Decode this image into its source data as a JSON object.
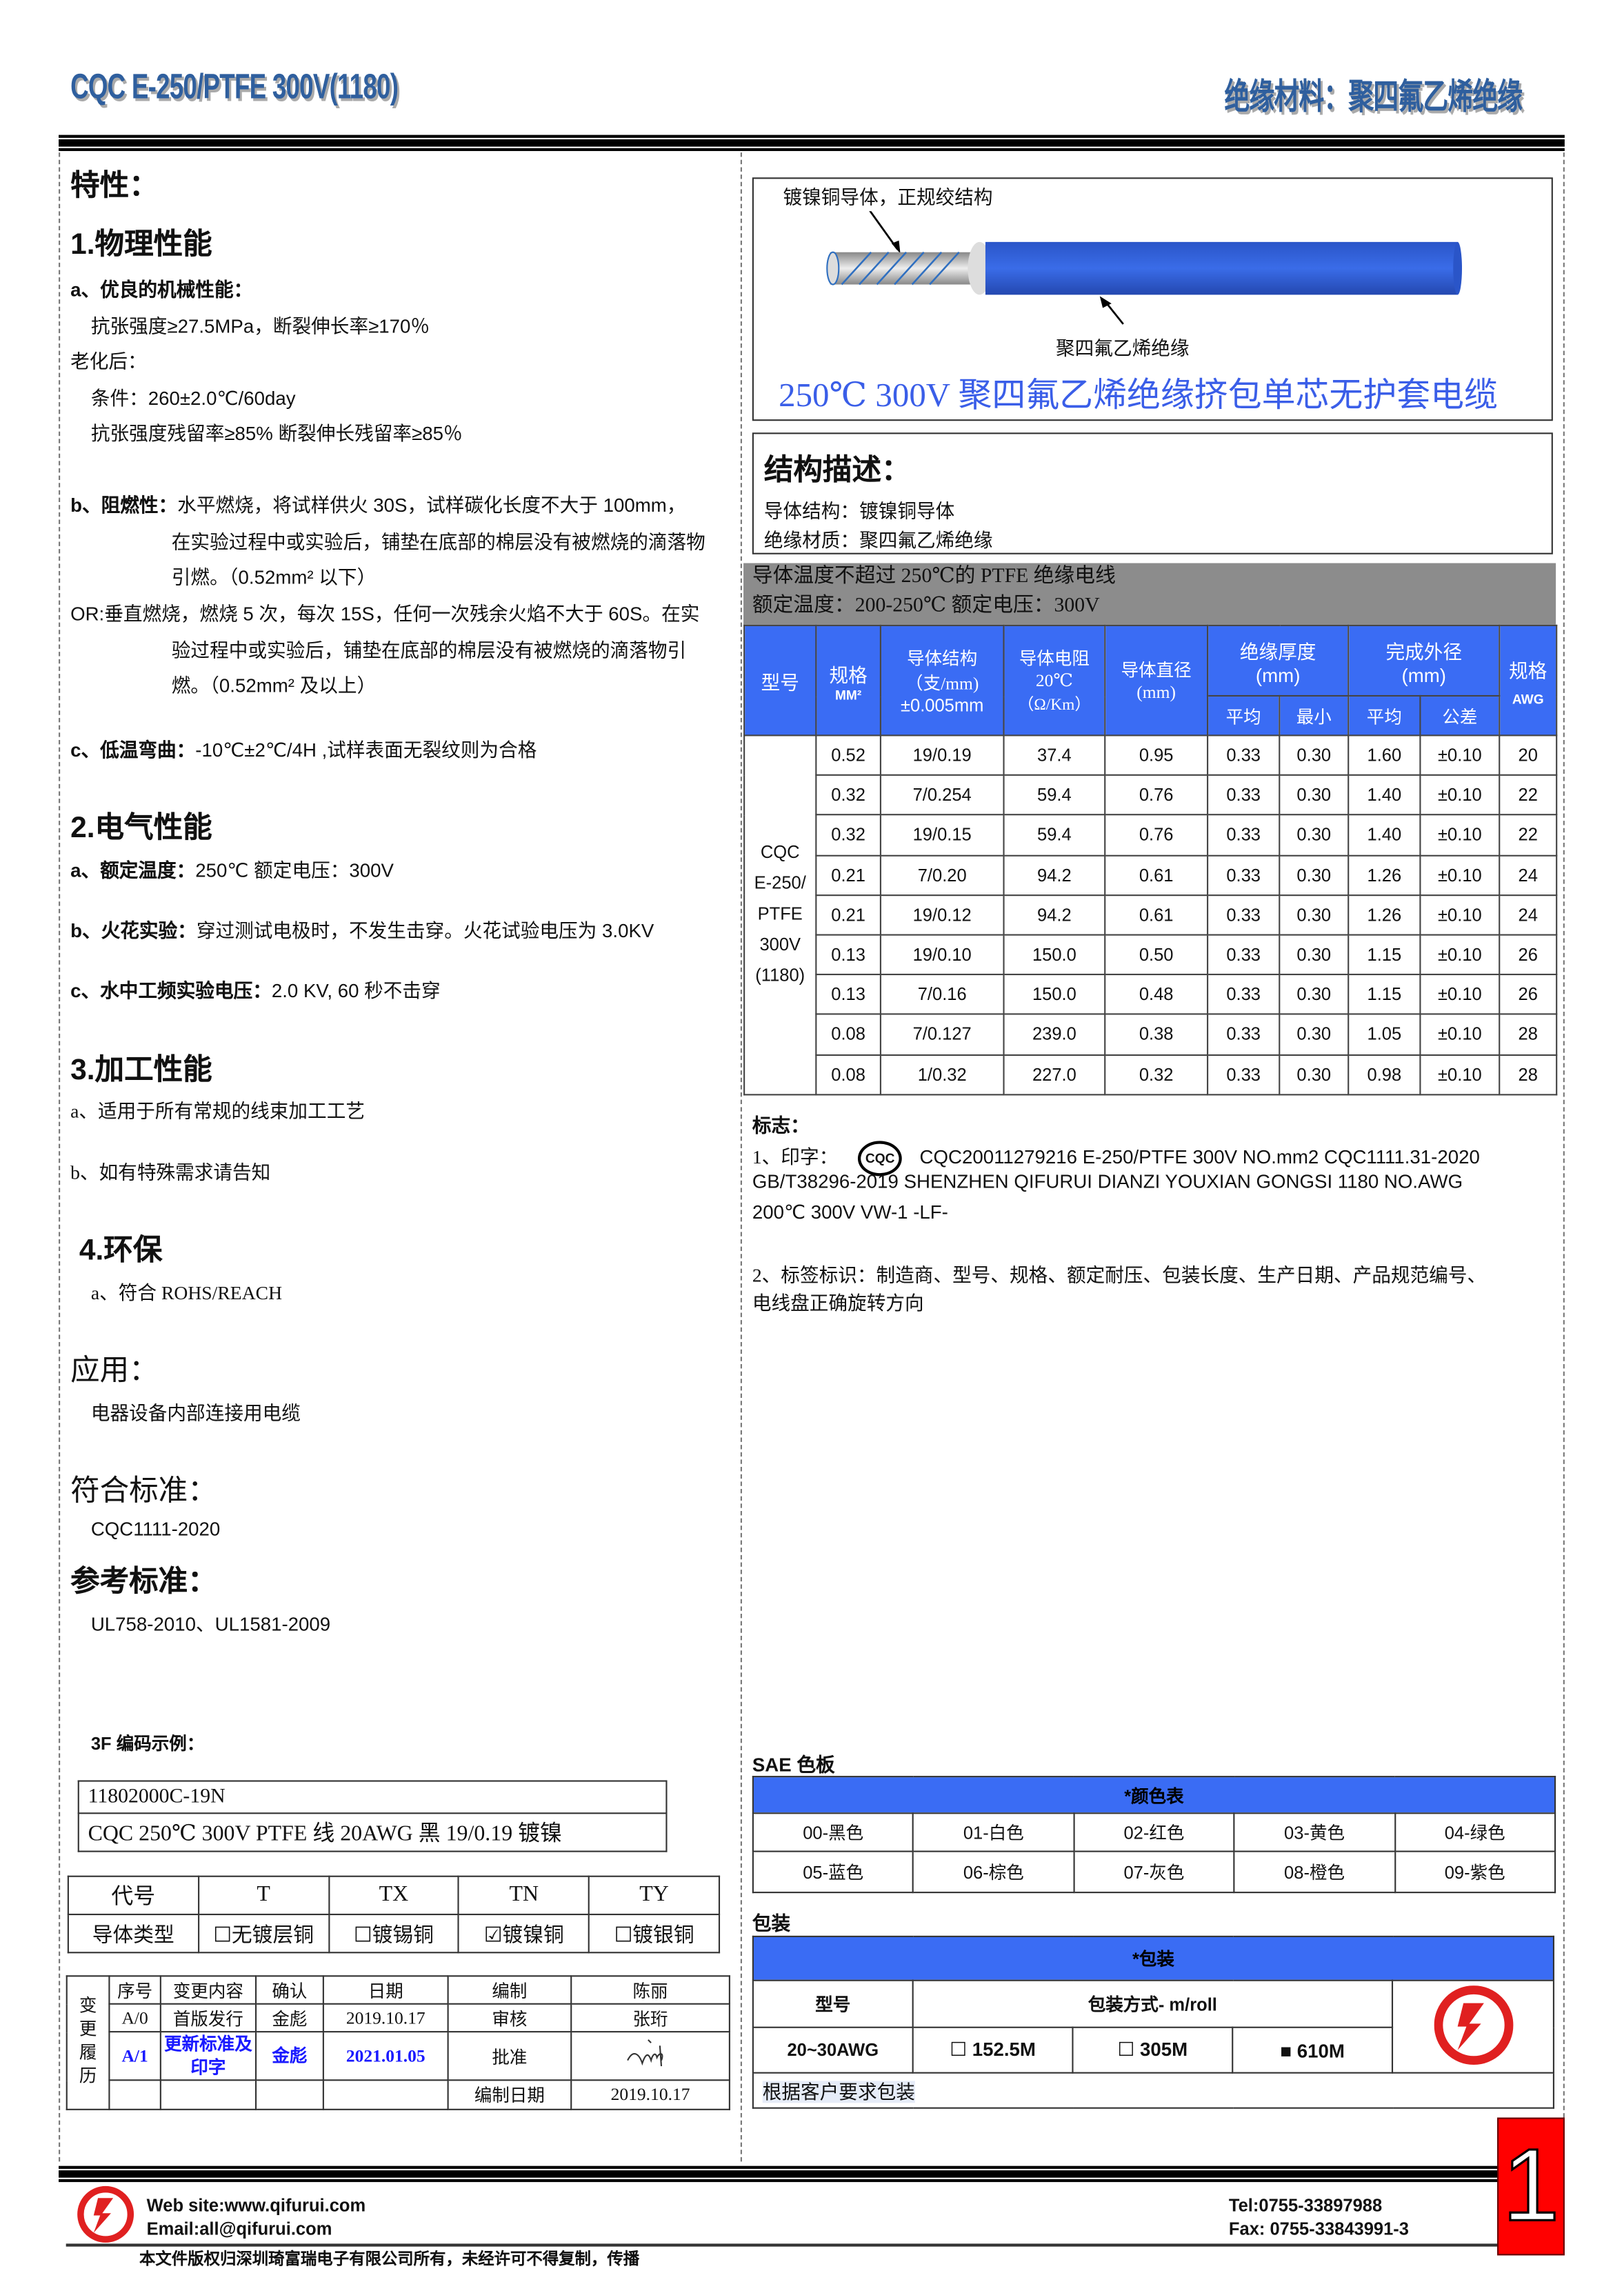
{
  "header": {
    "left_title": "CQC E-250/PTFE 300V(1180)",
    "right_title": "绝缘材料：聚四氟乙烯绝缘"
  },
  "left": {
    "features_title": "特性：",
    "physical": {
      "title": "1.物理性能",
      "a_label": "a、优良的机械性能：",
      "a_line1": "抗张强度≥27.5MPa，断裂伸长率≥170％",
      "aging": "老化后：",
      "cond": "条件：260±2.0℃/60day",
      "retain": "抗张强度残留率≥85%  断裂伸长残留率≥85％",
      "b_label": "b、阻燃性：",
      "b_line1": "水平燃烧，将试样供火 30S，试样碳化长度不大于 100mm，",
      "b_line2": "在实验过程中或实验后，铺垫在底部的棉层没有被燃烧的滴落物",
      "b_line3": "引燃。（0.52mm² 以下）",
      "or_line1": "OR:垂直燃烧，燃烧 5 次，每次 15S，任何一次残余火焰不大于 60S。在实",
      "or_line2": "验过程中或实验后，铺垫在底部的棉层没有被燃烧的滴落物引",
      "or_line3": "燃。（0.52mm² 及以上）",
      "c_label": "c、低温弯曲：",
      "c_text": "-10℃±2℃/4H ,试样表面无裂纹则为合格"
    },
    "electrical": {
      "title": "2.电气性能",
      "a_label": "a、额定温度：",
      "a_text": "250℃    额定电压：300V",
      "b_label": "b、火花实验：",
      "b_text": "穿过测试电极时，不发生击穿。火花试验电压为 3.0KV",
      "c_label": "c、水中工频实验电压：",
      "c_text": "2.0 KV, 60 秒不击穿"
    },
    "processing": {
      "title": "3.加工性能",
      "a": "a、适用于所有常规的线束加工工艺",
      "b": "b、如有特殊需求请告知"
    },
    "env": {
      "title": "4.环保",
      "a": "a、符合 ROHS/REACH"
    },
    "application": {
      "title": "应用：",
      "text": "电器设备内部连接用电缆"
    },
    "standard": {
      "title": "符合标准：",
      "text": "CQC1111-2020"
    },
    "reference": {
      "title": "参考标准：",
      "text": "UL758-2010、UL1581-2009"
    },
    "code_example": {
      "title": "3F 编码示例：",
      "code": "11802000C-19N",
      "desc": "CQC 250℃  300V PTFE 线  20AWG  黑  19/0.19 镀镍"
    },
    "conductor_table": {
      "row1": [
        "代号",
        "T",
        "TX",
        "TN",
        "TY"
      ],
      "row2_label": "导体类型",
      "options": [
        {
          "label": "无镀层铜",
          "checked": false
        },
        {
          "label": "镀锡铜",
          "checked": false
        },
        {
          "label": "镀镍铜",
          "checked": true
        },
        {
          "label": "镀银铜",
          "checked": false
        }
      ]
    },
    "revision": {
      "side": "变更履历",
      "h": [
        "序号",
        "变更内容",
        "确认",
        "日期",
        "编制",
        "陈丽"
      ],
      "r1": [
        "A/0",
        "首版发行",
        "金彪",
        "2019.10.17",
        "审核",
        "张珩"
      ],
      "r2": [
        "A/1",
        "更新标准及印字",
        "金彪",
        "2021.01.05",
        "批准"
      ],
      "r3_label": "编制日期",
      "r3_date": "2019.10.17",
      "highlight_color": "#1a1aff"
    }
  },
  "right": {
    "image": {
      "conductor_label": "镀镍铜导体，正规绞结构",
      "insulation_label": "聚四氟乙烯绝缘",
      "caption": "250℃  300V 聚四氟乙烯绝缘挤包单芯无护套电缆",
      "wire_color": "#2f5fd8"
    },
    "structure": {
      "title": "结构描述：",
      "conductor": "导体结构：镀镍铜导体",
      "insulation": "绝缘材质：聚四氟乙烯绝缘"
    },
    "band": {
      "line1": "导体温度不超过 250℃的 PTFE 绝缘电线",
      "line2": "额定温度：200-250℃  额定电压：300V"
    },
    "spec_table": {
      "headers": {
        "model": "型号",
        "spec": "规格",
        "spec_unit": "MM²",
        "cond": "导体结构",
        "cond_unit": "（支/mm)",
        "cond_tol": "±0.005mm",
        "res": "导体电阻",
        "res_temp": "20℃",
        "res_unit": "（Ω/Km）",
        "dia": "导体直径",
        "dia_unit": "(mm)",
        "ins": "绝缘厚度",
        "ins_unit": "(mm)",
        "od": "完成外径",
        "od_unit": "(mm)",
        "avg": "平均",
        "min": "最小",
        "avg2": "平均",
        "tol": "公差",
        "awg": "规格",
        "awg_unit": "AWG"
      },
      "model_lines": [
        "CQC",
        "E-250/",
        "PTFE",
        "300V",
        "(1180)"
      ],
      "rows": [
        [
          "0.52",
          "19/0.19",
          "37.4",
          "0.95",
          "0.33",
          "0.30",
          "1.60",
          "±0.10",
          "20"
        ],
        [
          "0.32",
          "7/0.254",
          "59.4",
          "0.76",
          "0.33",
          "0.30",
          "1.40",
          "±0.10",
          "22"
        ],
        [
          "0.32",
          "19/0.15",
          "59.4",
          "0.76",
          "0.33",
          "0.30",
          "1.40",
          "±0.10",
          "22"
        ],
        [
          "0.21",
          "7/0.20",
          "94.2",
          "0.61",
          "0.33",
          "0.30",
          "1.26",
          "±0.10",
          "24"
        ],
        [
          "0.21",
          "19/0.12",
          "94.2",
          "0.61",
          "0.33",
          "0.30",
          "1.26",
          "±0.10",
          "24"
        ],
        [
          "0.13",
          "19/0.10",
          "150.0",
          "0.50",
          "0.33",
          "0.30",
          "1.15",
          "±0.10",
          "26"
        ],
        [
          "0.13",
          "7/0.16",
          "150.0",
          "0.48",
          "0.33",
          "0.30",
          "1.15",
          "±0.10",
          "26"
        ],
        [
          "0.08",
          "7/0.127",
          "239.0",
          "0.38",
          "0.33",
          "0.30",
          "1.05",
          "±0.10",
          "28"
        ],
        [
          "0.08",
          "1/0.32",
          "227.0",
          "0.32",
          "0.33",
          "0.30",
          "0.98",
          "±0.10",
          "28"
        ]
      ]
    },
    "marking": {
      "title": "标志：",
      "l1_label": "1、印字：",
      "cqc_logo": "CQC",
      "l1": "CQC20011279216  E-250/PTFE   300V   NO.mm2   CQC1111.31-2020",
      "l2": "GB/T38296-2019 SHENZHEN QIFURUI DIANZI YOUXIAN GONGSI      1180 NO.AWG",
      "l3": "200℃  300V VW-1 -LF-",
      "l4": "2、标签标识：制造商、型号、规格、额定耐压、包装长度、生产日期、产品规范编号、",
      "l5": "电线盘正确旋转方向"
    },
    "sae": {
      "title": "SAE 色板",
      "header": "*颜色表",
      "colors": [
        "00-黑色",
        "01-白色",
        "02-红色",
        "03-黄色",
        "04-绿色",
        "05-蓝色",
        "06-棕色",
        "07-灰色",
        "08-橙色",
        "09-紫色"
      ]
    },
    "packing": {
      "title": "包装",
      "header": "*包装",
      "model_h": "型号",
      "method_h": "包装方式- m/roll",
      "model": "20~30AWG",
      "options": [
        {
          "label": "152.5M",
          "checked": false
        },
        {
          "label": "305M",
          "checked": false
        },
        {
          "label": "610M",
          "checked": true
        }
      ],
      "note": "根据客户要求包装"
    }
  },
  "page_number": "1",
  "footer": {
    "web": "Web site:www.qifurui.com",
    "email": "Email:all@qifurui.com",
    "tel": "Tel:0755-33897988",
    "fax": "Fax: 0755-33843991-3",
    "copyright": "本文件版权归深圳琦富瑞电子有限公司所有，未经许可不得复制，传播"
  },
  "colors": {
    "header_blue": "#3a6cf4",
    "band_gray": "#8c8c8c",
    "logo_red": "#e02020",
    "page_red": "#ff0000"
  }
}
